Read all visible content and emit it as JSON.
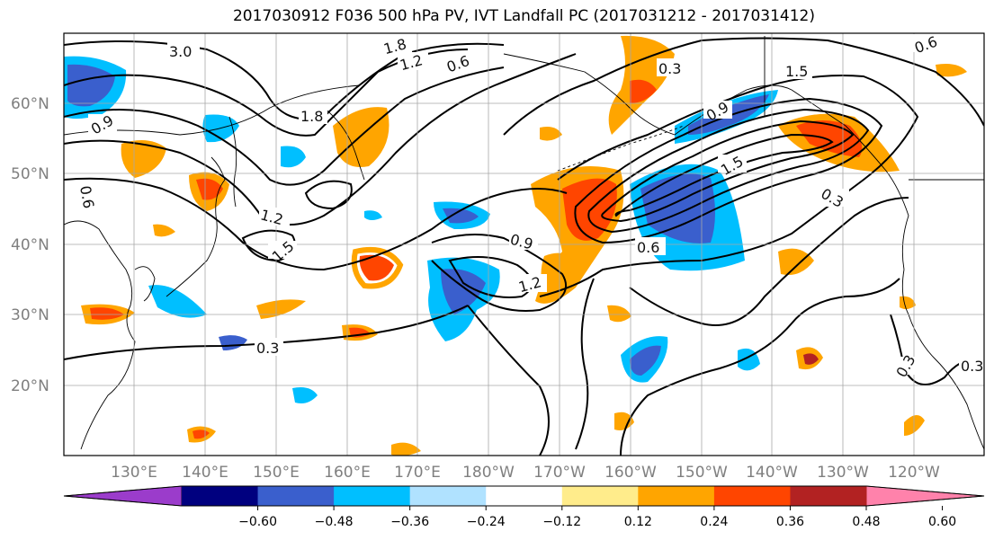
{
  "title": "2017030912 F036 500 hPa PV, IVT Landfall PC (2017031212 - 2017031412)",
  "lat_labels": [
    "60°N",
    "50°N",
    "40°N",
    "30°N",
    "20°N"
  ],
  "lon_labels": [
    "130°E",
    "140°E",
    "150°E",
    "160°E",
    "170°E",
    "180°W",
    "170°W",
    "160°W",
    "150°W",
    "140°W",
    "130°W",
    "120°W"
  ],
  "contour_labels": [
    "3.0",
    "1.8",
    "1.2",
    "0.6",
    "0.3",
    "1.5",
    "0.9",
    "1.8",
    "0.6",
    "1.2",
    "1.5",
    "0.9",
    "0.3",
    "1.2",
    "0.6",
    "0.9",
    "0.3",
    "0.3",
    "0.3",
    "1.5",
    "0.6"
  ],
  "colorbar": {
    "colors": [
      "#9b3ccb",
      "#00007f",
      "#3a5fcd",
      "#00bfff",
      "#b0e2ff",
      "#ffffff",
      "#ffec8b",
      "#ffa500",
      "#ff4500",
      "#b22222",
      "#ff82ab"
    ],
    "tick_labels": [
      "−0.60",
      "−0.48",
      "−0.36",
      "−0.24",
      "−0.12",
      "0.12",
      "0.24",
      "0.36",
      "0.48",
      "0.60"
    ]
  },
  "legend_colors": {
    "neg_light": "#b0e2ff",
    "neg_mid": "#00bfff",
    "neg_strong": "#3a5fcd",
    "pos_light": "#ffec8b",
    "pos_mid": "#ffa500",
    "pos_strong": "#ff4500",
    "pos_max": "#b22222"
  }
}
